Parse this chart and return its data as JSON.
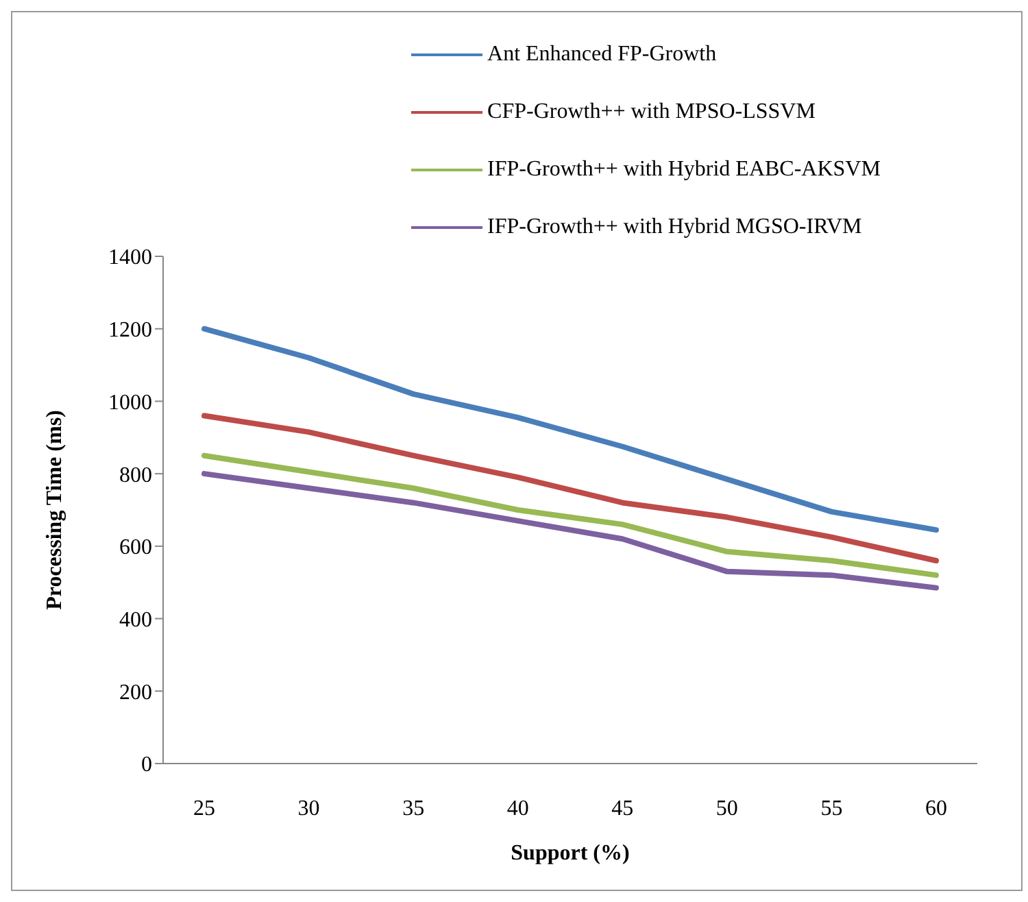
{
  "chart_data": {
    "type": "line",
    "xlabel": "Support (%)",
    "ylabel": "Processing Time (ms)",
    "categories": [
      "25",
      "30",
      "35",
      "40",
      "45",
      "50",
      "55",
      "60"
    ],
    "series": [
      {
        "name": "Ant Enhanced FP-Growth",
        "color": "#4a7ebb",
        "values": [
          1200,
          1120,
          1020,
          955,
          875,
          785,
          695,
          645
        ]
      },
      {
        "name": "CFP-Growth++ with MPSO-LSSVM",
        "color": "#be4b48",
        "values": [
          960,
          915,
          850,
          790,
          720,
          680,
          625,
          560
        ]
      },
      {
        "name": "IFP-Growth++ with Hybrid EABC-AKSVM",
        "color": "#98b954",
        "values": [
          850,
          805,
          760,
          700,
          660,
          585,
          560,
          520
        ]
      },
      {
        "name": "IFP-Growth++ with Hybrid MGSO-IRVM",
        "color": "#7d60a0",
        "values": [
          800,
          760,
          720,
          670,
          620,
          530,
          520,
          485
        ]
      }
    ],
    "ylim": [
      0,
      1400
    ],
    "yticks": [
      0,
      200,
      400,
      600,
      800,
      1000,
      1200,
      1400
    ],
    "grid": false,
    "legend": "top",
    "marker": "none",
    "line_style": "solid"
  }
}
